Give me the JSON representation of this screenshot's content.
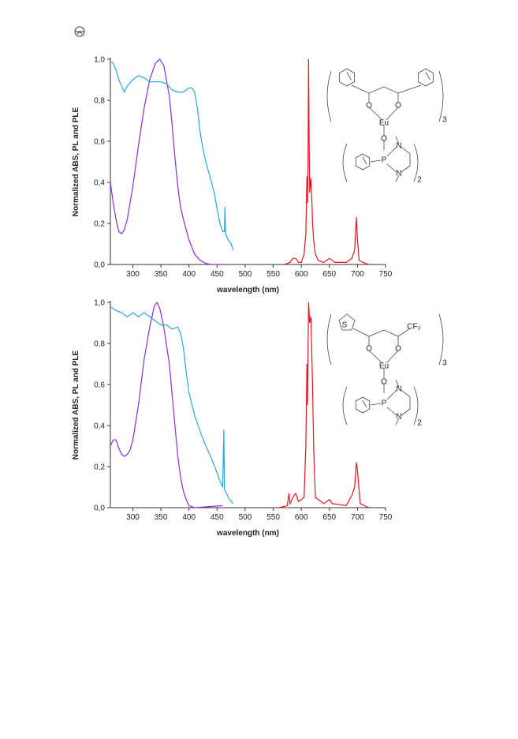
{
  "chart_data": [
    {
      "type": "line",
      "x_label": "wavelength (nm)",
      "y_label": "Normalized ABS, PL and PLE",
      "xlim": [
        260,
        750
      ],
      "xticks": [
        300,
        350,
        400,
        450,
        500,
        550,
        600,
        650,
        700,
        750
      ],
      "ylim": [
        0,
        1
      ],
      "yticks": [
        {
          "value": 0,
          "label": "0,0"
        },
        {
          "value": 0.2,
          "label": "0,2"
        },
        {
          "value": 0.4,
          "label": "0,4"
        },
        {
          "value": 0.6,
          "label": "0,6"
        },
        {
          "value": 0.8,
          "label": "0,8"
        },
        {
          "value": 1,
          "label": "1,0"
        }
      ],
      "structure_labels": [
        "O",
        "O",
        "Eu",
        "O",
        "P",
        "N",
        "N",
        "3",
        "2"
      ],
      "series": [
        {
          "color": "#8a2be2",
          "x": [
            260,
            265,
            270,
            275,
            280,
            285,
            290,
            300,
            310,
            320,
            330,
            340,
            348,
            355,
            365,
            370,
            375,
            380,
            385,
            390,
            400,
            410,
            420,
            430,
            440,
            460
          ],
          "values": [
            0.4,
            0.3,
            0.22,
            0.16,
            0.15,
            0.17,
            0.22,
            0.38,
            0.58,
            0.76,
            0.9,
            0.98,
            1.0,
            0.97,
            0.82,
            0.68,
            0.52,
            0.38,
            0.28,
            0.22,
            0.12,
            0.05,
            0.02,
            0.005,
            0,
            0
          ]
        },
        {
          "color": "#29a8e0",
          "x": [
            260,
            265,
            270,
            275,
            280,
            285,
            290,
            300,
            310,
            320,
            330,
            340,
            350,
            360,
            370,
            380,
            390,
            400,
            405,
            410,
            415,
            420,
            425,
            430,
            440,
            445,
            450,
            455,
            460,
            463,
            464,
            465,
            470,
            475,
            479
          ],
          "values": [
            0.99,
            0.98,
            0.95,
            0.9,
            0.87,
            0.84,
            0.87,
            0.9,
            0.92,
            0.91,
            0.89,
            0.89,
            0.89,
            0.88,
            0.85,
            0.84,
            0.84,
            0.86,
            0.86,
            0.84,
            0.76,
            0.64,
            0.56,
            0.5,
            0.4,
            0.35,
            0.27,
            0.2,
            0.16,
            0.16,
            0.28,
            0.15,
            0.12,
            0.1,
            0.07
          ]
        },
        {
          "color": "#e8141c",
          "x": [
            570,
            580,
            585,
            590,
            595,
            600,
            605,
            608,
            610,
            611,
            612,
            613,
            614,
            615,
            617,
            619,
            620,
            622,
            625,
            630,
            640,
            650,
            655,
            660,
            680,
            690,
            695,
            698,
            700,
            703,
            710,
            720
          ],
          "values": [
            0,
            0.01,
            0.03,
            0.03,
            0.01,
            0.01,
            0.05,
            0.15,
            0.43,
            0.3,
            0.5,
            1.0,
            0.6,
            0.35,
            0.42,
            0.3,
            0.2,
            0.12,
            0.05,
            0.02,
            0.01,
            0.03,
            0.02,
            0.01,
            0.01,
            0.03,
            0.07,
            0.23,
            0.12,
            0.02,
            0.01,
            0
          ]
        }
      ]
    },
    {
      "type": "line",
      "x_label": "wavelength (nm)",
      "y_label": "Normalized ABS, PL and PLE",
      "xlim": [
        260,
        750
      ],
      "xticks": [
        300,
        350,
        400,
        450,
        500,
        550,
        600,
        650,
        700,
        750
      ],
      "ylim": [
        0,
        1
      ],
      "yticks": [
        {
          "value": 0,
          "label": "0,0"
        },
        {
          "value": 0.2,
          "label": "0,2"
        },
        {
          "value": 0.4,
          "label": "0,4"
        },
        {
          "value": 0.6,
          "label": "0,6"
        },
        {
          "value": 0.8,
          "label": "0,8"
        },
        {
          "value": 1,
          "label": "1,0"
        }
      ],
      "structure_labels": [
        "S",
        "CF₃",
        "O",
        "O",
        "Eu",
        "O",
        "P",
        "N",
        "N",
        "3",
        "2"
      ],
      "series": [
        {
          "color": "#8a2be2",
          "x": [
            260,
            265,
            270,
            275,
            280,
            285,
            290,
            295,
            300,
            310,
            320,
            330,
            338,
            343,
            348,
            355,
            365,
            370,
            375,
            380,
            385,
            390,
            395,
            400,
            410,
            460
          ],
          "values": [
            0.3,
            0.33,
            0.33,
            0.29,
            0.26,
            0.25,
            0.26,
            0.28,
            0.33,
            0.5,
            0.72,
            0.88,
            0.98,
            1.0,
            0.97,
            0.88,
            0.7,
            0.55,
            0.4,
            0.25,
            0.15,
            0.08,
            0.04,
            0.01,
            0,
            0.01
          ]
        },
        {
          "color": "#29a8e0",
          "x": [
            260,
            270,
            280,
            290,
            300,
            310,
            320,
            330,
            340,
            350,
            360,
            370,
            380,
            385,
            390,
            395,
            400,
            410,
            420,
            430,
            440,
            450,
            455,
            460,
            462,
            463,
            470,
            475,
            479
          ],
          "values": [
            0.98,
            0.96,
            0.95,
            0.93,
            0.95,
            0.93,
            0.95,
            0.93,
            0.91,
            0.89,
            0.89,
            0.87,
            0.88,
            0.85,
            0.78,
            0.66,
            0.56,
            0.45,
            0.37,
            0.3,
            0.24,
            0.17,
            0.13,
            0.1,
            0.38,
            0.09,
            0.05,
            0.03,
            0.02
          ]
        },
        {
          "color": "#e8141c",
          "x": [
            560,
            575,
            578,
            580,
            585,
            590,
            595,
            605,
            608,
            610,
            611,
            613,
            615,
            617,
            620,
            622,
            625,
            640,
            650,
            655,
            680,
            690,
            695,
            698,
            700,
            705,
            720
          ],
          "values": [
            0,
            0.01,
            0.07,
            0.02,
            0.05,
            0.07,
            0.03,
            0.05,
            0.3,
            0.7,
            0.5,
            1.0,
            0.9,
            0.93,
            0.6,
            0.3,
            0.05,
            0.02,
            0.04,
            0.02,
            0.01,
            0.06,
            0.1,
            0.22,
            0.18,
            0.02,
            0
          ]
        }
      ]
    }
  ]
}
